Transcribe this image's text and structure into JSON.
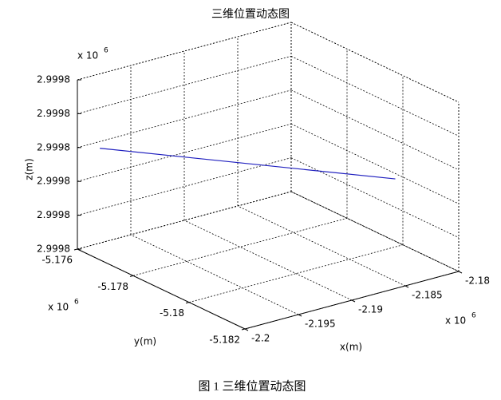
{
  "chart_data": {
    "type": "line3d",
    "title": "三维位置动态图",
    "caption": "图 1 三维位置动态图",
    "x_label": "x(m)",
    "y_label": "y(m)",
    "z_label": "z(m)",
    "x_multiplier": {
      "base": "x 10",
      "power": "6"
    },
    "y_multiplier": {
      "base": "x 10",
      "power": "6"
    },
    "z_multiplier": {
      "base": "x 10",
      "power": "6"
    },
    "xlim": [
      -2.2,
      -2.18
    ],
    "xticks": [
      -2.2,
      -2.195,
      -2.19,
      -2.185,
      -2.18
    ],
    "ylim": [
      -5.182,
      -5.176
    ],
    "yticks": [
      -5.182,
      -5.18,
      -5.178,
      -5.176
    ],
    "zlim": [
      2.99976,
      2.99981
    ],
    "zticks": [
      {
        "value": 2.99976,
        "label": "2.9998"
      },
      {
        "value": 2.99977,
        "label": "2.9998"
      },
      {
        "value": 2.99978,
        "label": "2.9998"
      },
      {
        "value": 2.99979,
        "label": "2.9998"
      },
      {
        "value": 2.9998,
        "label": "2.9998"
      },
      {
        "value": 2.99981,
        "label": "2.9998"
      }
    ],
    "grid": true,
    "series": [
      {
        "color": "#1f1fbf",
        "x": [
          -2.1979,
          -2.1828
        ],
        "y": [
          -5.176,
          -5.1808
        ],
        "z": [
          2.999788,
          2.999785
        ]
      }
    ]
  }
}
